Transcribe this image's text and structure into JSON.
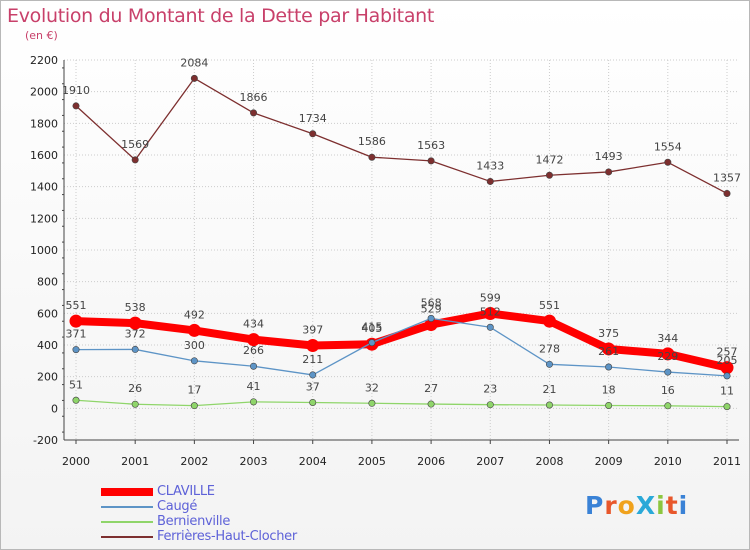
{
  "header": {
    "title": "Evolution du Montant de la Dette par Habitant",
    "unit": "(en €)"
  },
  "logo": {
    "text": "ProXiti"
  },
  "chart_data": {
    "type": "line",
    "title": "Evolution du Montant de la Dette par Habitant",
    "subtitle": "(en €)",
    "xlabel": "",
    "ylabel": "",
    "x": [
      "2000",
      "2001",
      "2002",
      "2003",
      "2004",
      "2005",
      "2006",
      "2007",
      "2008",
      "2009",
      "2010",
      "2011"
    ],
    "ylim": [
      -200,
      2200
    ],
    "yticks": [
      -200,
      0,
      200,
      400,
      600,
      800,
      1000,
      1200,
      1400,
      1600,
      1800,
      2000,
      2200
    ],
    "grid": true,
    "legend": "bottom-left",
    "series": [
      {
        "name": "CLAVILLE",
        "color": "#ff0000",
        "values": [
          551,
          538,
          492,
          434,
          397,
          405,
          529,
          599,
          551,
          375,
          344,
          257
        ]
      },
      {
        "name": "Caugé",
        "color": "#5d94c6",
        "values": [
          371,
          372,
          300,
          266,
          211,
          415,
          568,
          512,
          278,
          261,
          229,
          205
        ]
      },
      {
        "name": "Bernienville",
        "color": "#8fd56a",
        "values": [
          51,
          26,
          17,
          41,
          37,
          32,
          27,
          23,
          21,
          18,
          16,
          11
        ]
      },
      {
        "name": "Ferrières-Haut-Clocher",
        "color": "#7d2f2f",
        "values": [
          1910,
          1569,
          2084,
          1866,
          1734,
          1586,
          1563,
          1433,
          1472,
          1493,
          1554,
          1357
        ]
      }
    ]
  }
}
